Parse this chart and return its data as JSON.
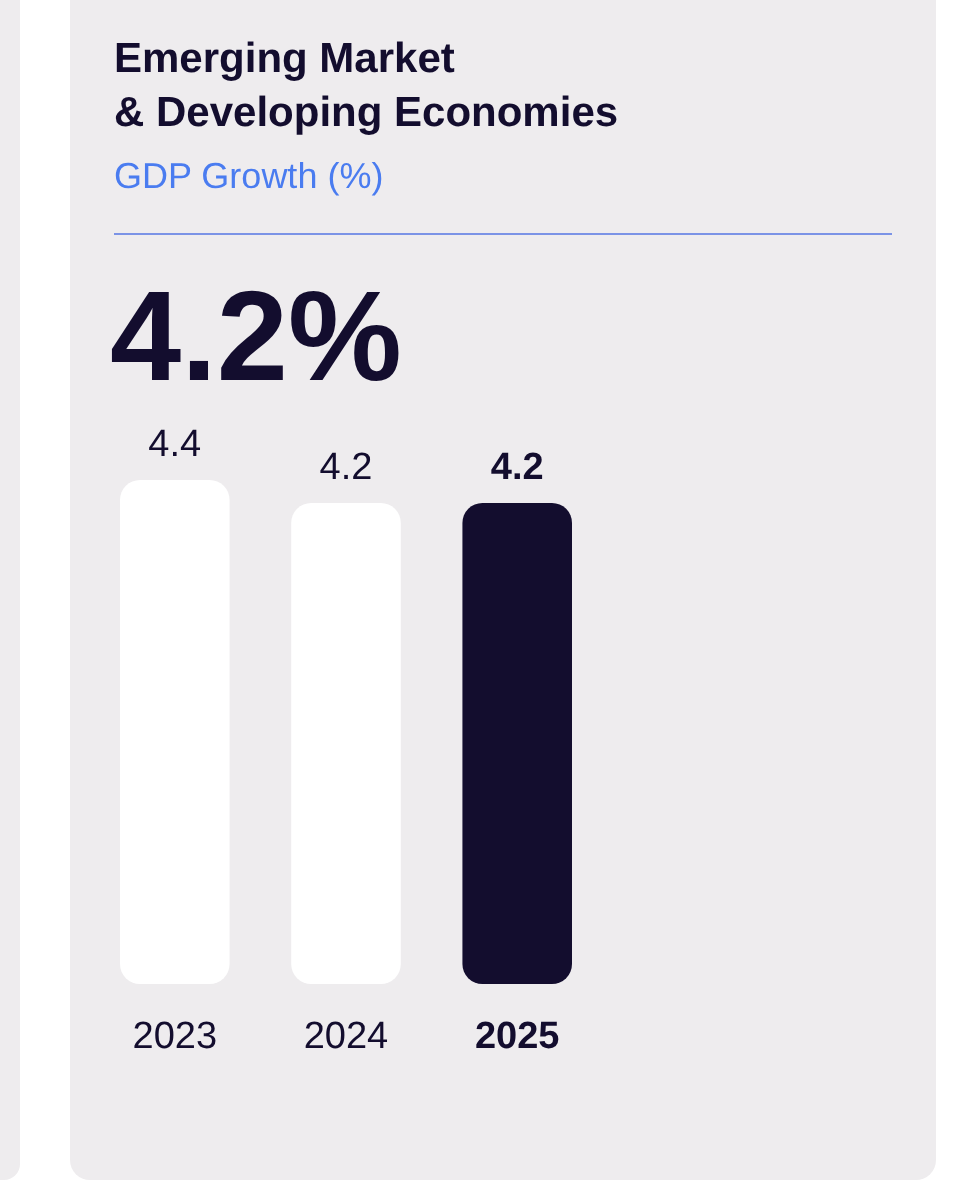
{
  "chart_data": {
    "type": "bar",
    "title": "Emerging Market\n& Developing Economies",
    "subtitle": "GDP Growth (%)",
    "annotations": [
      "4.2%"
    ],
    "categories": [
      "2023",
      "2024",
      "2025"
    ],
    "values": [
      4.4,
      4.2,
      4.2
    ],
    "colors": [
      "#ffffff",
      "#ffffff",
      "#130d2e"
    ],
    "data_labels": true
  }
}
